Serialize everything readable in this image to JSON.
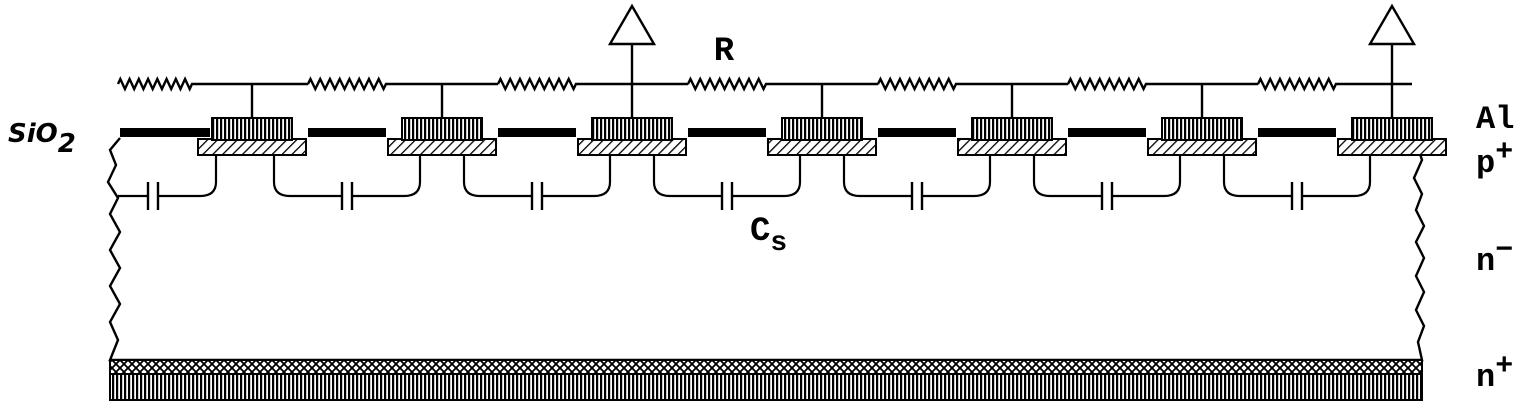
{
  "labels": {
    "resistor": "R",
    "capacitor_main": "C",
    "capacitor_sub": "s",
    "oxide": "SiO",
    "oxide_sub": "2",
    "metal": "Al",
    "p_layer": "p",
    "p_layer_sup": "+",
    "bulk": "n",
    "bulk_sup": "−",
    "backside": "n",
    "backside_sup": "+"
  },
  "structure": {
    "strip_count": 7,
    "output_amplifier_strips": [
      2,
      6
    ],
    "interstrip_capacitor_count": 7,
    "readout_resistor_count": 7
  },
  "colors": {
    "line": "#000000",
    "fill": "#ffffff"
  }
}
